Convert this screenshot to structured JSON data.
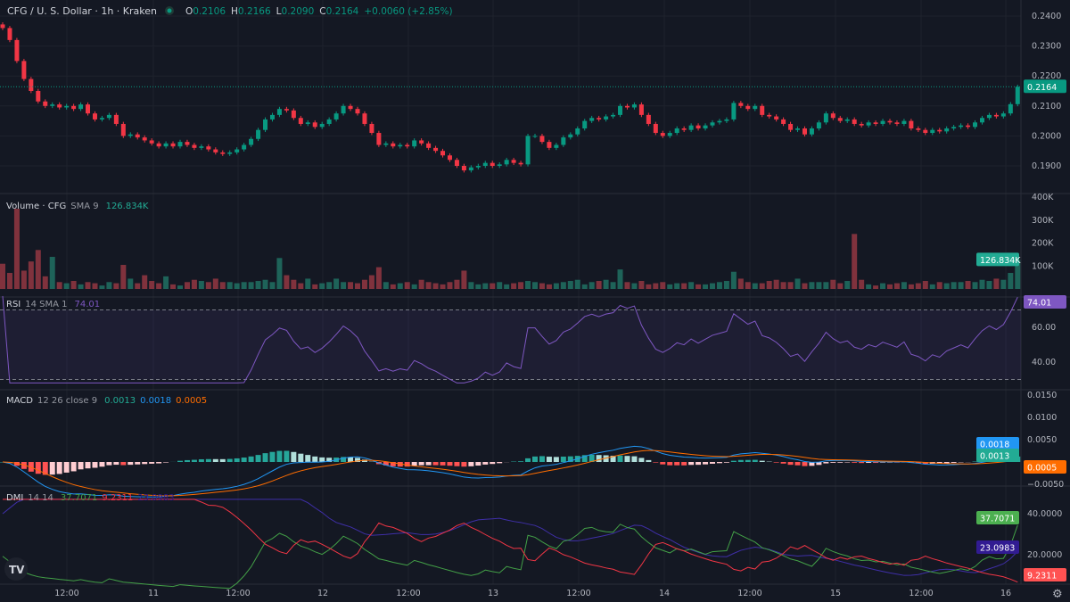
{
  "header": {
    "symbol": "CFG / U. S. Dollar · 1h · Kraken",
    "market_status_color": "#089981",
    "o_label": "O",
    "o": "0.2106",
    "h_label": "H",
    "h": "0.2166",
    "l_label": "L",
    "l": "0.2090",
    "c_label": "C",
    "c": "0.2164",
    "change": "+0.0060 (+2.85%)"
  },
  "colors": {
    "up": "#089981",
    "down": "#f23645",
    "background": "#141823",
    "rsi": "#7e57c2",
    "macd": "#2962ff",
    "signal": "#ff6d00",
    "plus_di": "#43a047",
    "minus_di": "#f23645",
    "adx": "#311b92"
  },
  "price_axis": {
    "ticks": [
      "0.2400",
      "0.2300",
      "0.2200",
      "0.2100",
      "0.2000",
      "0.1900"
    ],
    "last_price": "0.2164"
  },
  "volume": {
    "title": "Volume · CFG",
    "params": "SMA 9",
    "value": "126.834K",
    "ticks": [
      "400K",
      "300K",
      "200K",
      "100K"
    ]
  },
  "rsi": {
    "title": "RSI",
    "params": "14 SMA 1",
    "value": "74.01",
    "ticks": [
      "60.00",
      "40.00"
    ]
  },
  "macd": {
    "title": "MACD",
    "params": "12 26 close 9",
    "hist": "0.0013",
    "macd": "0.0018",
    "signal": "0.0005",
    "ticks": [
      "0.0150",
      "0.0100",
      "0.0050",
      "−0.0050"
    ]
  },
  "dmi": {
    "title": "DMI",
    "params": "14 14",
    "plus": "37.7071",
    "minus": "9.2311",
    "adx": "23.0983",
    "ticks": [
      "40.0000",
      "20.0000"
    ]
  },
  "time_axis": [
    "12:00",
    "11",
    "12:00",
    "12",
    "12:00",
    "13",
    "12:00",
    "14",
    "12:00",
    "15",
    "12:00",
    "16"
  ],
  "chart_data": {
    "type": "candlestick",
    "interval": "1h",
    "ylim": [
      0.186,
      0.2415
    ],
    "close": [
      0.236,
      0.232,
      0.225,
      0.219,
      0.215,
      0.2115,
      0.21,
      0.2105,
      0.2095,
      0.21,
      0.209,
      0.2105,
      0.2075,
      0.2055,
      0.206,
      0.207,
      0.204,
      0.2,
      0.2005,
      0.1995,
      0.1985,
      0.1975,
      0.1965,
      0.1975,
      0.1965,
      0.198,
      0.197,
      0.196,
      0.1965,
      0.1955,
      0.1945,
      0.194,
      0.1945,
      0.1955,
      0.197,
      0.199,
      0.202,
      0.2055,
      0.207,
      0.209,
      0.2085,
      0.206,
      0.204,
      0.2045,
      0.203,
      0.204,
      0.2055,
      0.2075,
      0.21,
      0.209,
      0.2075,
      0.204,
      0.201,
      0.197,
      0.1975,
      0.1965,
      0.197,
      0.1965,
      0.1985,
      0.1975,
      0.196,
      0.195,
      0.1935,
      0.192,
      0.19,
      0.1885,
      0.1895,
      0.19,
      0.191,
      0.19,
      0.1905,
      0.192,
      0.191,
      0.1905,
      0.2,
      0.2,
      0.198,
      0.196,
      0.197,
      0.1995,
      0.2005,
      0.2025,
      0.205,
      0.206,
      0.2055,
      0.2065,
      0.207,
      0.21,
      0.2095,
      0.2105,
      0.207,
      0.204,
      0.201,
      0.2,
      0.201,
      0.2025,
      0.202,
      0.2035,
      0.2025,
      0.2035,
      0.2045,
      0.205,
      0.2055,
      0.211,
      0.21,
      0.209,
      0.21,
      0.207,
      0.2065,
      0.2055,
      0.204,
      0.202,
      0.2025,
      0.2005,
      0.2025,
      0.2045,
      0.2075,
      0.206,
      0.205,
      0.2055,
      0.204,
      0.2035,
      0.2045,
      0.204,
      0.205,
      0.2045,
      0.204,
      0.205,
      0.2025,
      0.202,
      0.201,
      0.202,
      0.2015,
      0.2025,
      0.203,
      0.2035,
      0.203,
      0.2045,
      0.206,
      0.207,
      0.2065,
      0.2075,
      0.2106,
      0.2164
    ],
    "volume_k": [
      110,
      70,
      350,
      80,
      120,
      170,
      55,
      140,
      30,
      25,
      35,
      20,
      30,
      25,
      15,
      30,
      25,
      105,
      45,
      25,
      60,
      35,
      25,
      55,
      20,
      15,
      30,
      40,
      35,
      30,
      45,
      30,
      30,
      25,
      30,
      30,
      35,
      40,
      30,
      135,
      60,
      40,
      25,
      45,
      20,
      25,
      30,
      45,
      30,
      30,
      25,
      40,
      60,
      95,
      30,
      20,
      25,
      30,
      20,
      40,
      30,
      25,
      20,
      30,
      40,
      80,
      30,
      20,
      25,
      25,
      30,
      20,
      25,
      30,
      35,
      30,
      25,
      20,
      25,
      30,
      35,
      40,
      20,
      30,
      35,
      40,
      30,
      85,
      30,
      25,
      35,
      20,
      25,
      30,
      20,
      25,
      25,
      30,
      20,
      20,
      25,
      30,
      35,
      75,
      45,
      30,
      25,
      25,
      35,
      40,
      30,
      30,
      45,
      25,
      30,
      30,
      30,
      40,
      25,
      35,
      240,
      40,
      20,
      15,
      25,
      20,
      25,
      30,
      20,
      25,
      35,
      20,
      30,
      25,
      30,
      30,
      35,
      30,
      40,
      35,
      45,
      40,
      70,
      126.834
    ]
  }
}
